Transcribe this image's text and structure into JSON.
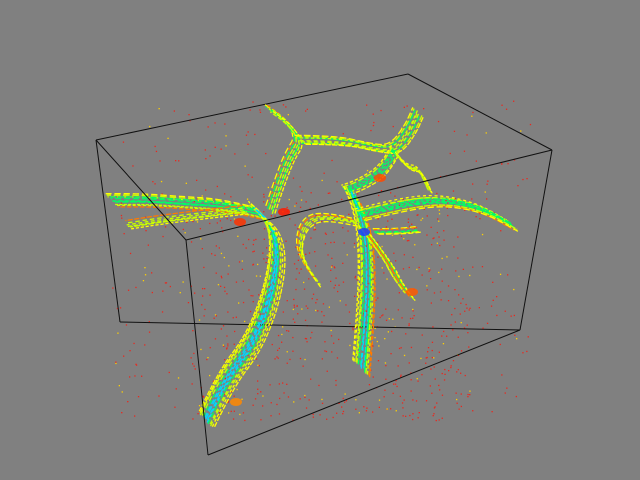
{
  "scene": {
    "background_color": "#808080",
    "box_edge_color": "#111111",
    "noise_color": "#e8281e",
    "colormap": [
      "#1a3cff",
      "#00d8ff",
      "#00ff66",
      "#c8ff00",
      "#ffff00",
      "#ff7a00",
      "#ff1a00"
    ]
  }
}
